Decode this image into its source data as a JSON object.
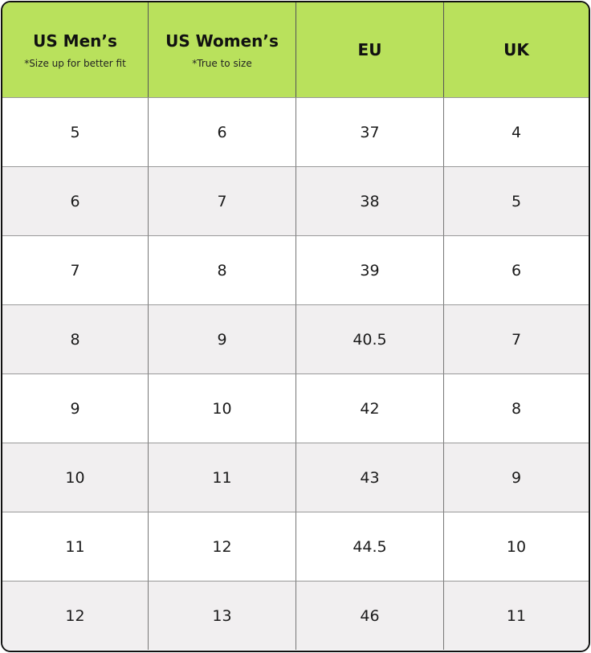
{
  "header": [
    {
      "title": "US Men’s",
      "subtitle": "*Size up for better fit"
    },
    {
      "title": "US Women’s",
      "subtitle": "*True to size"
    },
    {
      "title": "EU"
    },
    {
      "title": "UK"
    }
  ],
  "table": {
    "rows": [
      [
        5,
        6,
        37,
        4
      ],
      [
        6,
        7,
        38,
        5
      ],
      [
        7,
        8,
        39,
        6
      ],
      [
        8,
        9,
        40.5,
        7
      ],
      [
        9,
        10,
        42,
        8
      ],
      [
        10,
        11,
        43,
        9
      ],
      [
        11,
        12,
        44.5,
        10
      ],
      [
        12,
        13,
        46,
        11
      ]
    ]
  }
}
